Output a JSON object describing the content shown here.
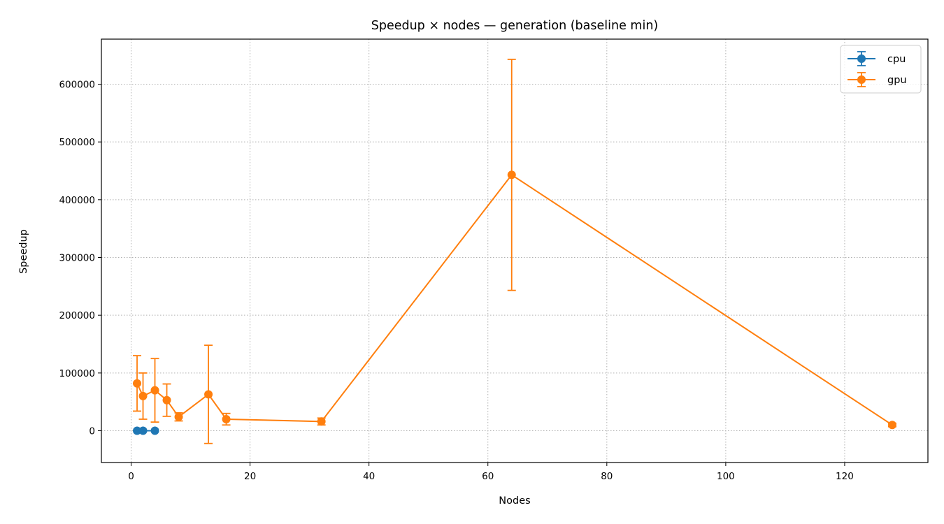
{
  "chart_data": {
    "type": "line",
    "title": "Speedup × nodes — generation (baseline min)",
    "xlabel": "Nodes",
    "ylabel": "Speedup",
    "xlim": [
      -5,
      134
    ],
    "ylim": [
      -55000,
      678000
    ],
    "xticks": [
      0,
      20,
      40,
      60,
      80,
      100,
      120
    ],
    "yticks": [
      0,
      100000,
      200000,
      300000,
      400000,
      500000,
      600000
    ],
    "grid": true,
    "legend_position": "top-right",
    "series": [
      {
        "name": "cpu",
        "color": "#1f77b4",
        "points": [
          {
            "x": 1,
            "y": 0,
            "err": 0
          },
          {
            "x": 2,
            "y": 0,
            "err": 0
          },
          {
            "x": 4,
            "y": 0,
            "err": 0
          }
        ]
      },
      {
        "name": "gpu",
        "color": "#ff7f0e",
        "points": [
          {
            "x": 1,
            "y": 82000,
            "err": 48000
          },
          {
            "x": 2,
            "y": 60000,
            "err": 40000
          },
          {
            "x": 4,
            "y": 70000,
            "err": 55000
          },
          {
            "x": 6,
            "y": 53000,
            "err": 28000
          },
          {
            "x": 8,
            "y": 24000,
            "err": 7000
          },
          {
            "x": 13,
            "y": 63000,
            "err": 85000
          },
          {
            "x": 16,
            "y": 20000,
            "err": 10000
          },
          {
            "x": 32,
            "y": 16000,
            "err": 6000
          },
          {
            "x": 64,
            "y": 443000,
            "err": 200000
          },
          {
            "x": 128,
            "y": 10000,
            "err": 3000
          }
        ]
      }
    ]
  }
}
